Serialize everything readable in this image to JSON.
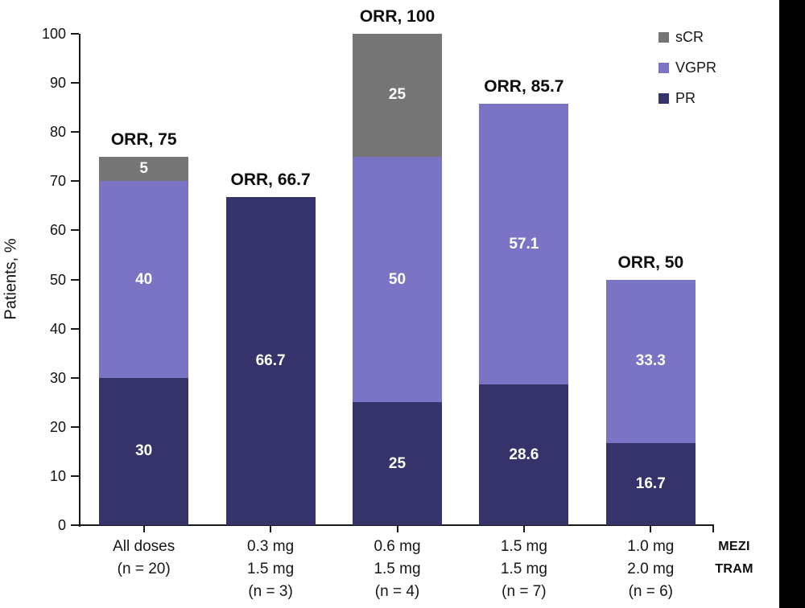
{
  "page": {
    "background_color": "#ffffff",
    "right_strip_color": "#000000"
  },
  "chart_data": {
    "type": "bar",
    "stacked": true,
    "ylabel": "Patients, %",
    "xlabel": "",
    "ylim": [
      0,
      100
    ],
    "ytick_step": 10,
    "yticks": [
      0,
      10,
      20,
      30,
      40,
      50,
      60,
      70,
      80,
      90,
      100
    ],
    "grid": false,
    "legend_position": "top-right",
    "legend": [
      {
        "label": "sCR",
        "color": "#757575"
      },
      {
        "label": "VGPR",
        "color": "#7B74C5"
      },
      {
        "label": "PR",
        "color": "#353369"
      }
    ],
    "series_colors": {
      "PR": "#353369",
      "VGPR": "#7B74C5",
      "sCR": "#757575"
    },
    "stack_order_bottom_to_top": [
      "PR",
      "VGPR",
      "sCR"
    ],
    "groups": [
      {
        "x_label_lines": [
          "All doses",
          "(n = 20)"
        ],
        "orr": 75,
        "orr_label": "ORR, 75",
        "segments": [
          {
            "name": "PR",
            "value": 30,
            "label": "30"
          },
          {
            "name": "VGPR",
            "value": 40,
            "label": "40"
          },
          {
            "name": "sCR",
            "value": 5,
            "label": "5"
          }
        ]
      },
      {
        "x_label_lines": [
          "0.3 mg",
          "1.5 mg",
          "(n = 3)"
        ],
        "orr": 66.7,
        "orr_label": "ORR, 66.7",
        "segments": [
          {
            "name": "PR",
            "value": 66.7,
            "label": "66.7"
          }
        ]
      },
      {
        "x_label_lines": [
          "0.6 mg",
          "1.5 mg",
          "(n = 4)"
        ],
        "orr": 100,
        "orr_label": "ORR, 100",
        "segments": [
          {
            "name": "PR",
            "value": 25,
            "label": "25"
          },
          {
            "name": "VGPR",
            "value": 50,
            "label": "50"
          },
          {
            "name": "sCR",
            "value": 25,
            "label": "25"
          }
        ]
      },
      {
        "x_label_lines": [
          "1.5 mg",
          "1.5 mg",
          "(n = 7)"
        ],
        "orr": 85.7,
        "orr_label": "ORR, 85.7",
        "segments": [
          {
            "name": "PR",
            "value": 28.6,
            "label": "28.6"
          },
          {
            "name": "VGPR",
            "value": 57.1,
            "label": "57.1"
          }
        ]
      },
      {
        "x_label_lines": [
          "1.0 mg",
          "2.0 mg",
          "(n = 6)"
        ],
        "orr": 50,
        "orr_label": "ORR, 50",
        "segments": [
          {
            "name": "PR",
            "value": 16.7,
            "label": "16.7"
          },
          {
            "name": "VGPR",
            "value": 33.3,
            "label": "33.3"
          }
        ]
      }
    ],
    "axis_drug_row_labels": [
      "MEZI",
      "TRAM"
    ]
  },
  "style": {
    "axis_color": "#1a1a1a",
    "text_color": "#111111"
  }
}
